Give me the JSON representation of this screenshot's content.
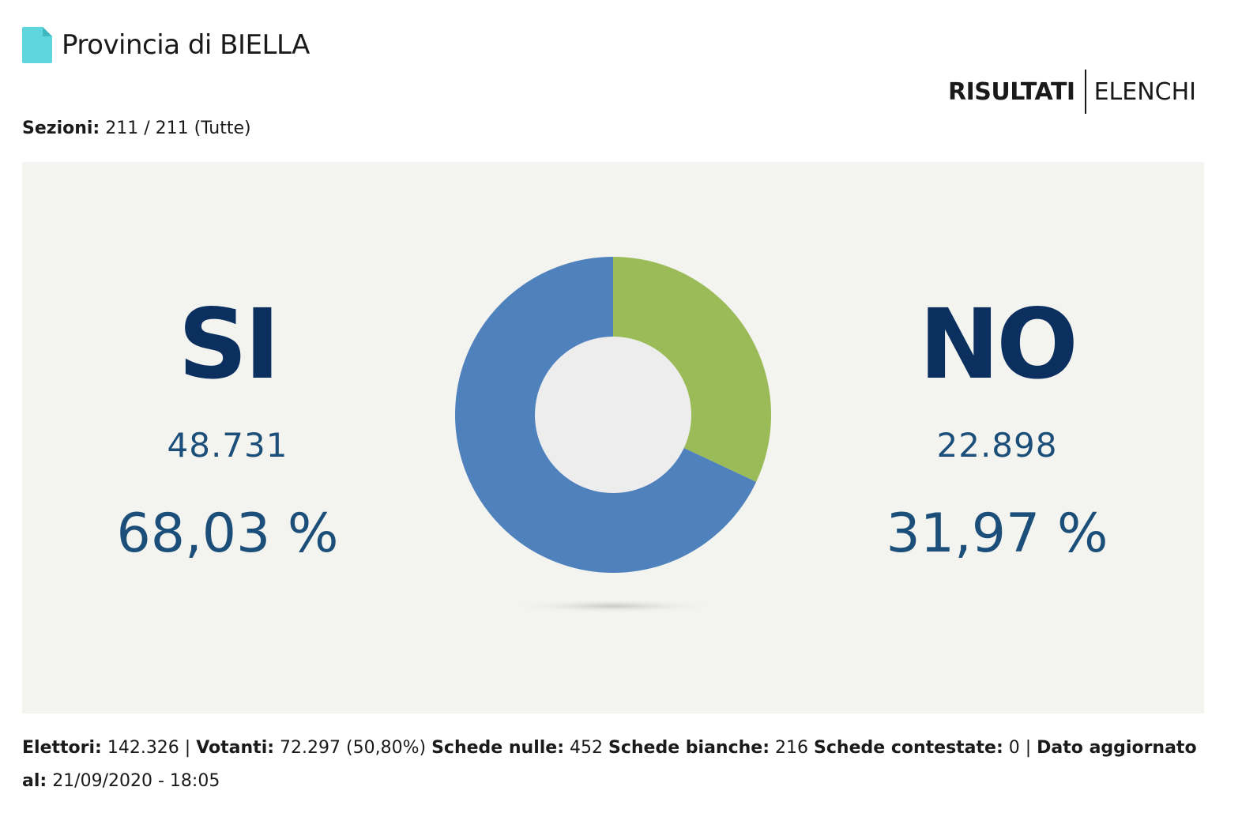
{
  "header": {
    "title": "Provincia di BIELLA",
    "icon": "document-icon",
    "icon_color": "#5fd6dd"
  },
  "nav": {
    "risultati_label": "RISULTATI",
    "elenchi_label": "ELENCHI"
  },
  "sezioni": {
    "label": "Sezioni:",
    "value": "211 / 211 (Tutte)"
  },
  "options": [
    {
      "name": "SI",
      "votes": "48.731",
      "percent": "68,03 %",
      "color": "#4f81bd"
    },
    {
      "name": "NO",
      "votes": "22.898",
      "percent": "31,97 %",
      "color": "#9bbb59"
    }
  ],
  "chart_data": {
    "type": "pie",
    "categories": [
      "SI",
      "NO"
    ],
    "values": [
      68.03,
      31.97
    ],
    "colors": [
      "#4f81bd",
      "#9bbb59"
    ],
    "inner_color": "#ededed"
  },
  "footer": {
    "elettori_label": "Elettori:",
    "elettori_value": "142.326 |",
    "votanti_label": "Votanti:",
    "votanti_value": "72.297 (50,80%)",
    "nulle_label": "Schede nulle:",
    "nulle_value": "452",
    "bianche_label": "Schede bianche:",
    "bianche_value": "216",
    "contestate_label": "Schede contestate:",
    "contestate_value": "0 |",
    "aggiornato_label": "Dato aggiornato al:",
    "aggiornato_value": "21/09/2020 - 18:05"
  }
}
